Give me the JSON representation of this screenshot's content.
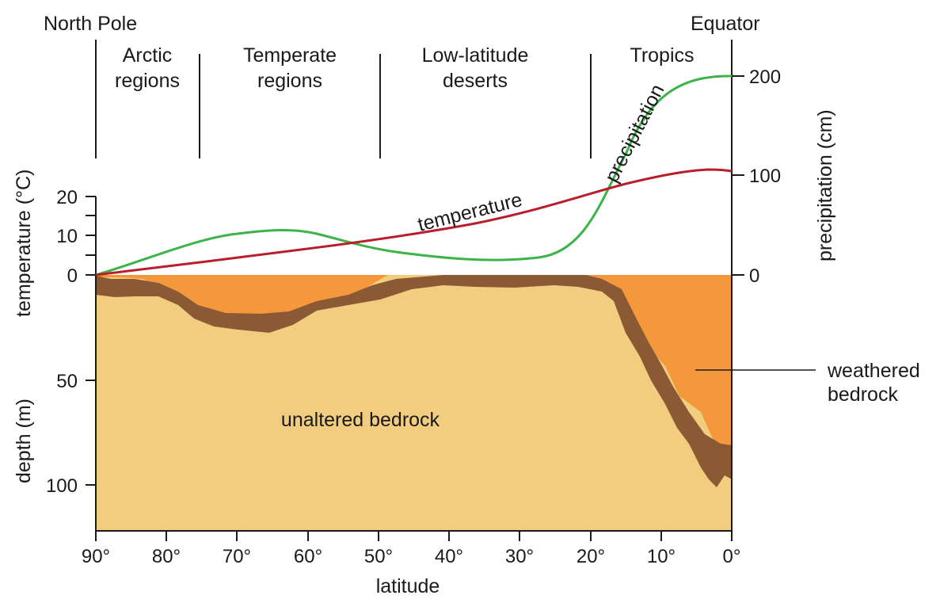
{
  "header": {
    "left": "North Pole",
    "right": "Equator"
  },
  "zones": [
    {
      "line1": "Arctic",
      "line2": "regions"
    },
    {
      "line1": "Temperate",
      "line2": "regions"
    },
    {
      "line1": "Low-latitude",
      "line2": "deserts"
    },
    {
      "line1": "Tropics",
      "line2": ""
    }
  ],
  "axes": {
    "temperature_label": "temperature (°C)",
    "depth_label": "depth (m)",
    "precipitation_label": "precipitation (cm)",
    "x_label": "latitude",
    "temperature_ticks": [
      "20",
      "10",
      "0"
    ],
    "depth_ticks": [
      "50",
      "100"
    ],
    "precipitation_ticks": [
      "200",
      "100",
      "0"
    ],
    "x_ticks": [
      "90°",
      "80°",
      "70°",
      "60°",
      "50°",
      "40°",
      "30°",
      "20°",
      "10°",
      "0°"
    ]
  },
  "curves": {
    "temperature_label": "temperature",
    "precipitation_label": "precipitation",
    "temperature_color": "#b81f2a",
    "precipitation_color": "#3cb44a"
  },
  "regions": {
    "unaltered": "unaltered bedrock",
    "weathered_line1": "weathered",
    "weathered_line2": "bedrock",
    "unaltered_color": "#f2cd7f",
    "weathered_color": "#f5973c",
    "transition_color": "#8b5a34"
  },
  "chart_data": {
    "type": "line",
    "x": [
      90,
      80,
      70,
      60,
      50,
      40,
      30,
      20,
      10,
      0
    ],
    "xlabel": "latitude",
    "series": [
      {
        "name": "temperature",
        "values": [
          0,
          3,
          5.5,
          8,
          11,
          14,
          18,
          21,
          26,
          27
        ]
      },
      {
        "name": "precipitation",
        "values": [
          0,
          20,
          38,
          44,
          30,
          18,
          15,
          40,
          150,
          200
        ]
      }
    ],
    "ylim_temperature": [
      0,
      20
    ],
    "ylim_precipitation": [
      0,
      200
    ],
    "depth_ylim": [
      0,
      120
    ]
  }
}
